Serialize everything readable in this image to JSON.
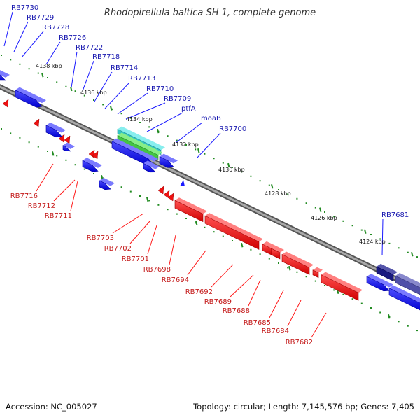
{
  "title": "Rhodopirellula baltica SH 1, complete genome",
  "accession_text": "Accession: NC_005027",
  "summary_text": "Topology: circular; Length: 7,145,576 bp; Genes: 7,405",
  "colors": {
    "forward": "#1a1aff",
    "reverse": "#ff1a1a",
    "forward_label": "#1a1ab0",
    "reverse_label": "#c41a1a",
    "ticks": "#228b22",
    "backbone": "#8a8a8a",
    "highlight_cyan": "#33c4c4",
    "highlight_green": "#44c444",
    "dark_blue": "#1a1a80",
    "slate_blue": "#5050a8"
  },
  "kbp_labels": [
    "4138 kbp",
    "4136 kbp",
    "4134 kbp",
    "4132 kbp",
    "4130 kbp",
    "4128 kbp",
    "4126 kbp",
    "4124 kbp"
  ],
  "forward_genes": [
    "RB7730",
    "RB7729",
    "RB7728",
    "RB7726",
    "RB7722",
    "RB7718",
    "RB7714",
    "RB7713",
    "RB7710",
    "RB7709",
    "ptfA",
    "moaB",
    "RB7700",
    "RB7681"
  ],
  "reverse_genes": [
    "RB7716",
    "RB7712",
    "RB7711",
    "RB7703",
    "RB7702",
    "RB7701",
    "RB7698",
    "RB7694",
    "RB7692",
    "RB7689",
    "RB7688",
    "RB7685",
    "RB7684",
    "RB7682"
  ]
}
